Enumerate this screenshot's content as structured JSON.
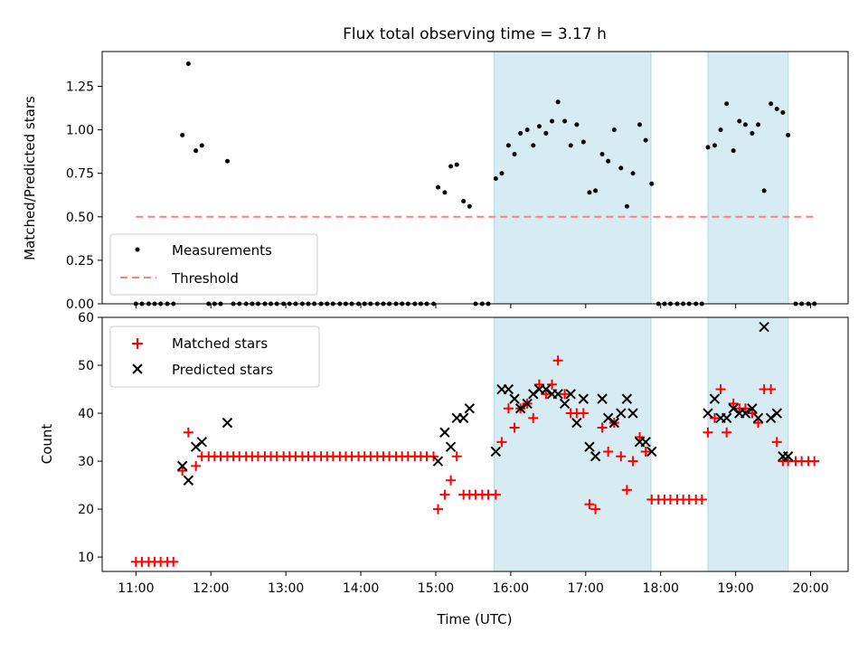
{
  "title": "Flux total observing time = 3.17 h",
  "colors": {
    "measurement": "#000000",
    "threshold": "#ff7f7f",
    "matched": "#ff0000",
    "predicted": "#000000",
    "span_fill": "#add8e6"
  },
  "chart_data": [
    {
      "type": "scatter",
      "ylabel": "Matched/Predicted stars",
      "xlim": [
        10.55,
        20.5
      ],
      "ylim": [
        0,
        1.45
      ],
      "yticks": [
        0.0,
        0.25,
        0.5,
        0.75,
        1.0,
        1.25
      ],
      "ytick_labels": [
        "0.00",
        "0.25",
        "0.50",
        "0.75",
        "1.00",
        "1.25"
      ],
      "grid": false,
      "legend_position": "lower-left",
      "spans": [
        [
          15.78,
          17.87
        ],
        [
          18.63,
          19.7
        ]
      ],
      "threshold": {
        "name": "Threshold",
        "value": 0.5,
        "x_range": [
          11.0,
          20.05
        ],
        "style": "dashed"
      },
      "series": [
        {
          "name": "Measurements",
          "marker": "dot",
          "x": [
            11.0,
            11.08,
            11.17,
            11.25,
            11.33,
            11.42,
            11.5,
            11.62,
            11.7,
            11.8,
            11.88,
            11.97,
            12.05,
            12.13,
            12.22,
            12.3,
            12.38,
            12.47,
            12.55,
            12.63,
            12.72,
            12.8,
            12.88,
            12.97,
            13.05,
            13.13,
            13.22,
            13.3,
            13.38,
            13.47,
            13.55,
            13.63,
            13.72,
            13.8,
            13.88,
            13.97,
            14.05,
            14.13,
            14.22,
            14.3,
            14.38,
            14.47,
            14.55,
            14.63,
            14.72,
            14.8,
            14.88,
            14.97,
            15.03,
            15.12,
            15.2,
            15.28,
            15.37,
            15.45,
            15.53,
            15.62,
            15.7,
            15.8,
            15.88,
            15.97,
            16.05,
            16.13,
            16.22,
            16.3,
            16.38,
            16.47,
            16.55,
            16.63,
            16.72,
            16.8,
            16.88,
            16.97,
            17.05,
            17.13,
            17.22,
            17.3,
            17.38,
            17.47,
            17.55,
            17.63,
            17.72,
            17.8,
            17.88,
            17.97,
            18.05,
            18.13,
            18.22,
            18.3,
            18.38,
            18.47,
            18.55,
            18.63,
            18.72,
            18.8,
            18.88,
            18.97,
            19.05,
            19.13,
            19.22,
            19.3,
            19.38,
            19.47,
            19.55,
            19.63,
            19.7,
            19.8,
            19.88,
            19.97,
            20.05
          ],
          "y": [
            0,
            0,
            0,
            0,
            0,
            0,
            0,
            0.97,
            1.38,
            0.88,
            0.91,
            0,
            0,
            0,
            0.82,
            0,
            0,
            0,
            0,
            0,
            0,
            0,
            0,
            0,
            0,
            0,
            0,
            0,
            0,
            0,
            0,
            0,
            0,
            0,
            0,
            0,
            0,
            0,
            0,
            0,
            0,
            0,
            0,
            0,
            0,
            0,
            0,
            0,
            0.67,
            0.64,
            0.79,
            0.8,
            0.59,
            0.56,
            0,
            0,
            0,
            0.72,
            0.75,
            0.91,
            0.86,
            0.98,
            1.0,
            0.91,
            1.02,
            0.98,
            1.05,
            1.16,
            1.05,
            0.91,
            1.03,
            0.93,
            0.64,
            0.65,
            0.86,
            0.82,
            1.0,
            0.78,
            0.56,
            0.75,
            1.03,
            0.94,
            0.69,
            0,
            0,
            0,
            0,
            0,
            0,
            0,
            0,
            0.9,
            0.91,
            1.0,
            1.15,
            0.88,
            1.05,
            1.03,
            0.98,
            1.03,
            0.65,
            1.15,
            1.12,
            1.1,
            0.97,
            0,
            0,
            0,
            0
          ]
        }
      ]
    },
    {
      "type": "scatter",
      "xlabel": "Time (UTC)",
      "ylabel": "Count",
      "xlim": [
        10.55,
        20.5
      ],
      "ylim": [
        7,
        60
      ],
      "xticks": [
        11,
        12,
        13,
        14,
        15,
        16,
        17,
        18,
        19,
        20
      ],
      "xtick_labels": [
        "11:00",
        "12:00",
        "13:00",
        "14:00",
        "15:00",
        "16:00",
        "17:00",
        "18:00",
        "19:00",
        "20:00"
      ],
      "yticks": [
        10,
        20,
        30,
        40,
        50,
        60
      ],
      "ytick_labels": [
        "10",
        "20",
        "30",
        "40",
        "50",
        "60"
      ],
      "grid": false,
      "legend_position": "upper-left",
      "spans": [
        [
          15.78,
          17.87
        ],
        [
          18.63,
          19.7
        ]
      ],
      "series": [
        {
          "name": "Matched stars",
          "marker": "plus",
          "x": [
            11.0,
            11.08,
            11.17,
            11.25,
            11.33,
            11.42,
            11.5,
            11.62,
            11.7,
            11.8,
            11.88,
            11.97,
            12.05,
            12.13,
            12.22,
            12.3,
            12.38,
            12.47,
            12.55,
            12.63,
            12.72,
            12.8,
            12.88,
            12.97,
            13.05,
            13.13,
            13.22,
            13.3,
            13.38,
            13.47,
            13.55,
            13.63,
            13.72,
            13.8,
            13.88,
            13.97,
            14.05,
            14.13,
            14.22,
            14.3,
            14.38,
            14.47,
            14.55,
            14.63,
            14.72,
            14.8,
            14.88,
            14.97,
            15.03,
            15.12,
            15.2,
            15.28,
            15.37,
            15.45,
            15.53,
            15.62,
            15.7,
            15.8,
            15.88,
            15.97,
            16.05,
            16.13,
            16.22,
            16.3,
            16.38,
            16.47,
            16.55,
            16.63,
            16.72,
            16.8,
            16.88,
            16.97,
            17.05,
            17.13,
            17.22,
            17.3,
            17.38,
            17.47,
            17.55,
            17.63,
            17.72,
            17.8,
            17.88,
            17.97,
            18.05,
            18.13,
            18.22,
            18.3,
            18.38,
            18.47,
            18.55,
            18.63,
            18.72,
            18.8,
            18.88,
            18.97,
            19.05,
            19.13,
            19.22,
            19.3,
            19.38,
            19.47,
            19.55,
            19.63,
            19.7,
            19.8,
            19.88,
            19.97,
            20.05
          ],
          "y": [
            9,
            9,
            9,
            9,
            9,
            9,
            9,
            28,
            36,
            29,
            31,
            31,
            31,
            31,
            31,
            31,
            31,
            31,
            31,
            31,
            31,
            31,
            31,
            31,
            31,
            31,
            31,
            31,
            31,
            31,
            31,
            31,
            31,
            31,
            31,
            31,
            31,
            31,
            31,
            31,
            31,
            31,
            31,
            31,
            31,
            31,
            31,
            31,
            20,
            23,
            26,
            31,
            23,
            23,
            23,
            23,
            23,
            23,
            34,
            41,
            37,
            41,
            42,
            39,
            46,
            44,
            46,
            51,
            44,
            40,
            40,
            40,
            21,
            20,
            37,
            32,
            38,
            31,
            24,
            30,
            35,
            32,
            22,
            22,
            22,
            22,
            22,
            22,
            22,
            22,
            22,
            36,
            39,
            45,
            36,
            42,
            41,
            41,
            40,
            38,
            45,
            45,
            34,
            30,
            30,
            30,
            30,
            30,
            30
          ]
        },
        {
          "name": "Predicted stars",
          "marker": "cross",
          "x": [
            11.62,
            11.7,
            11.8,
            11.88,
            12.22,
            15.03,
            15.12,
            15.2,
            15.28,
            15.37,
            15.45,
            15.8,
            15.88,
            15.97,
            16.05,
            16.13,
            16.22,
            16.3,
            16.38,
            16.47,
            16.55,
            16.63,
            16.72,
            16.8,
            16.88,
            16.97,
            17.05,
            17.13,
            17.22,
            17.3,
            17.38,
            17.47,
            17.55,
            17.63,
            17.72,
            17.8,
            17.88,
            18.63,
            18.72,
            18.8,
            18.88,
            18.97,
            19.05,
            19.13,
            19.22,
            19.3,
            19.38,
            19.47,
            19.55,
            19.63,
            19.7
          ],
          "y": [
            29,
            26,
            33,
            34,
            38,
            30,
            36,
            33,
            39,
            39,
            41,
            32,
            45,
            45,
            43,
            41,
            42,
            44,
            45,
            45,
            44,
            44,
            42,
            44,
            38,
            43,
            33,
            31,
            43,
            39,
            38,
            40,
            43,
            40,
            34,
            34,
            32,
            40,
            43,
            39,
            39,
            41,
            40,
            40,
            41,
            39,
            58,
            39,
            40,
            31,
            31
          ]
        }
      ]
    }
  ]
}
